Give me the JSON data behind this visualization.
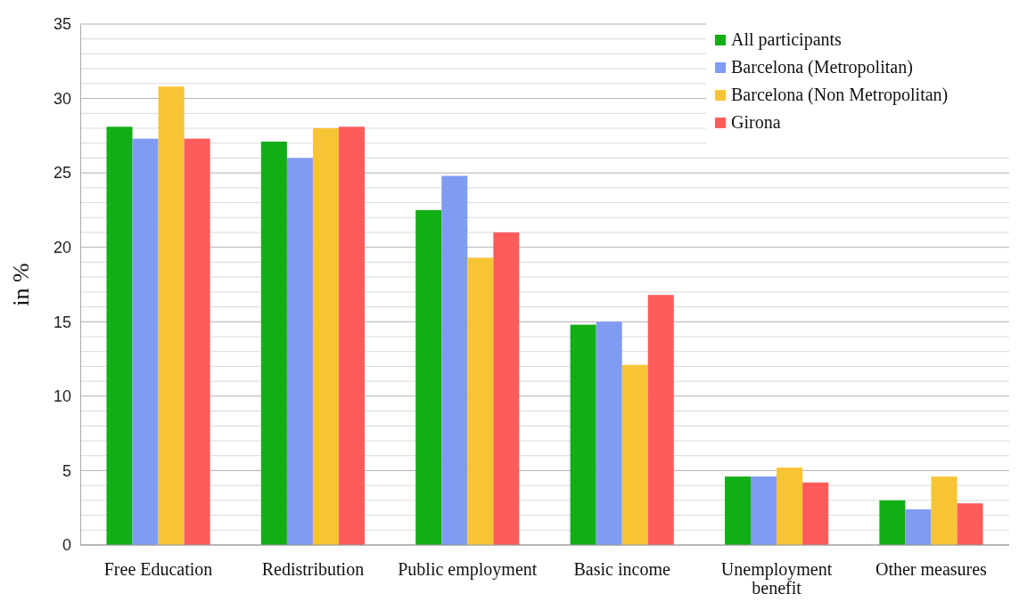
{
  "chart_data": {
    "type": "bar",
    "ylabel": "in %",
    "categories": [
      "Free Education",
      "Redistribution",
      "Public employment",
      "Basic income",
      "Unemployment benefit",
      "Other measures"
    ],
    "series": [
      {
        "name": "All participants",
        "color": "#11ae15",
        "values": [
          28.1,
          27.1,
          22.5,
          14.8,
          4.6,
          3.0
        ]
      },
      {
        "name": "Barcelona (Metropolitan)",
        "color": "#7f9cf2",
        "values": [
          27.3,
          26.0,
          24.8,
          15.0,
          4.6,
          2.4
        ]
      },
      {
        "name": "Barcelona (Non Metropolitan)",
        "color": "#f7c436",
        "values": [
          30.8,
          28.0,
          19.3,
          12.1,
          5.2,
          4.6
        ]
      },
      {
        "name": "Girona",
        "color": "#fe5c5a",
        "values": [
          27.3,
          28.1,
          21.0,
          16.8,
          4.2,
          2.8
        ]
      }
    ],
    "ylim": [
      0,
      35
    ],
    "yticks": [
      0,
      {
        "value": 1,
        "label": null
      },
      {
        "value": 2,
        "label": null
      },
      {
        "value": 3,
        "label": null
      },
      {
        "value": 4,
        "label": null
      },
      5,
      {
        "value": 6,
        "label": null
      },
      {
        "value": 7,
        "label": null
      },
      {
        "value": 8,
        "label": null
      },
      {
        "value": 9,
        "label": null
      },
      10,
      {
        "value": 11,
        "label": null
      },
      {
        "value": 12,
        "label": null
      },
      {
        "value": 13,
        "label": null
      },
      {
        "value": 14,
        "label": null
      },
      15,
      {
        "value": 16,
        "label": null
      },
      {
        "value": 17,
        "label": null
      },
      {
        "value": 18,
        "label": null
      },
      {
        "value": 19,
        "label": null
      },
      20,
      {
        "value": 21,
        "label": null
      },
      {
        "value": 22,
        "label": null
      },
      {
        "value": 23,
        "label": null
      },
      {
        "value": 24,
        "label": null
      },
      25,
      {
        "value": 26,
        "label": null
      },
      {
        "value": 27,
        "label": null
      },
      {
        "value": 28,
        "label": null
      },
      {
        "value": 29,
        "label": null
      },
      30,
      {
        "value": 31,
        "label": null
      },
      {
        "value": 32,
        "label": null
      },
      {
        "value": 33,
        "label": null
      },
      {
        "value": 34,
        "label": null
      },
      35
    ],
    "grid": "y",
    "legend": "top right"
  }
}
